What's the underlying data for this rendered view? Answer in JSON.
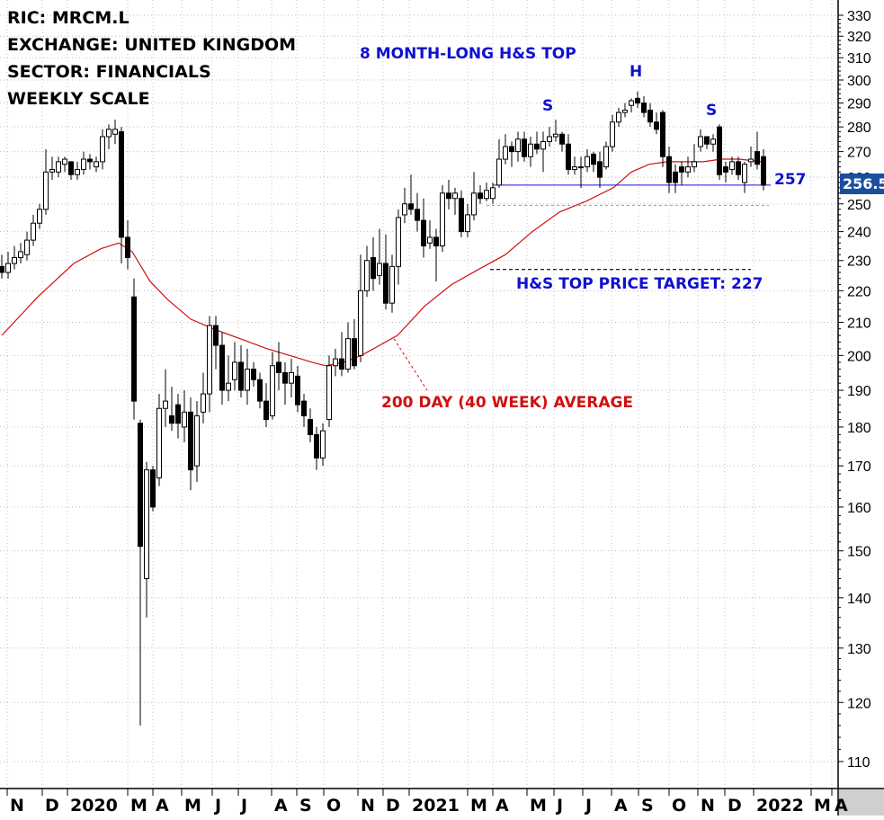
{
  "info": {
    "ric": "RIC: MRCM.L",
    "exchange": "EXCHANGE: UNITED KINGDOM",
    "sector": "SECTOR: FINANCIALS",
    "scale": "WEEKLY SCALE"
  },
  "annotations": {
    "pattern": "8 MONTH-LONG H&S TOP",
    "left_shoulder": "S",
    "head": "H",
    "right_shoulder": "S",
    "neckline": "257",
    "target": "H&S TOP PRICE TARGET: 227",
    "average": "200 DAY (40 WEEK) AVERAGE",
    "last_price": "256.5"
  },
  "colors": {
    "annotation_blue": "#1010d0",
    "average_red": "#d01010",
    "last_price_box": "#1a4fa0",
    "candle_up": "#ffffff",
    "candle_down": "#000000"
  },
  "chart_data": {
    "type": "candlestick",
    "scale": "log",
    "ylim": [
      105,
      335
    ],
    "y_ticks": [
      110,
      120,
      130,
      140,
      150,
      160,
      170,
      180,
      190,
      200,
      210,
      220,
      230,
      240,
      250,
      260,
      270,
      280,
      290,
      300,
      310,
      320,
      330
    ],
    "x_labels": [
      "N",
      "D",
      "2020",
      "M",
      "A",
      "M",
      "J",
      "J",
      "A",
      "S",
      "O",
      "N",
      "D",
      "2021",
      "M",
      "A",
      "M",
      "J",
      "J",
      "A",
      "S",
      "O",
      "N",
      "D",
      "2022",
      "M",
      "A"
    ],
    "neckline": 257,
    "price_target": 227,
    "last_price": 256.5,
    "moving_average": {
      "name": "200 DAY (40 WEEK) AVERAGE",
      "values": [
        [
          0,
          206
        ],
        [
          40,
          218
        ],
        [
          80,
          229
        ],
        [
          110,
          234
        ],
        [
          130,
          236
        ],
        [
          145,
          233
        ],
        [
          165,
          223
        ],
        [
          185,
          217
        ],
        [
          210,
          211
        ],
        [
          235,
          208
        ],
        [
          265,
          205
        ],
        [
          295,
          202
        ],
        [
          320,
          200
        ],
        [
          345,
          198
        ],
        [
          360,
          197
        ],
        [
          380,
          198
        ],
        [
          400,
          200
        ],
        [
          420,
          203
        ],
        [
          440,
          206
        ],
        [
          470,
          215
        ],
        [
          500,
          222
        ],
        [
          530,
          227
        ],
        [
          560,
          232
        ],
        [
          590,
          240
        ],
        [
          620,
          247
        ],
        [
          650,
          251
        ],
        [
          680,
          256
        ],
        [
          700,
          262
        ],
        [
          720,
          265
        ],
        [
          740,
          266
        ],
        [
          760,
          266
        ],
        [
          780,
          266
        ],
        [
          800,
          267
        ],
        [
          820,
          267
        ],
        [
          845,
          266
        ]
      ]
    },
    "candles": [
      [
        0,
        228,
        226,
        232,
        224
      ],
      [
        7,
        226,
        229,
        233,
        224
      ],
      [
        14,
        229,
        231,
        235,
        227
      ],
      [
        21,
        231,
        233,
        236,
        229
      ],
      [
        28,
        232,
        237,
        240,
        230
      ],
      [
        35,
        237,
        243,
        246,
        235
      ],
      [
        42,
        243,
        248,
        250,
        241
      ],
      [
        49,
        248,
        262,
        271,
        246
      ],
      [
        56,
        262,
        263,
        268,
        259
      ],
      [
        63,
        262,
        266,
        268,
        260
      ],
      [
        70,
        265,
        267,
        268,
        262
      ],
      [
        77,
        266,
        261,
        264,
        259
      ],
      [
        84,
        261,
        263,
        266,
        259
      ],
      [
        91,
        263,
        267,
        270,
        261
      ],
      [
        98,
        267,
        266,
        269,
        263
      ],
      [
        105,
        264,
        266,
        268,
        262
      ],
      [
        112,
        266,
        276,
        279,
        263
      ],
      [
        119,
        276,
        279,
        281,
        271
      ],
      [
        126,
        277,
        279,
        283,
        273
      ],
      [
        133,
        278,
        238,
        280,
        229
      ],
      [
        140,
        238,
        231,
        244,
        227
      ],
      [
        147,
        218,
        187,
        224,
        182
      ],
      [
        154,
        181,
        151,
        182,
        116
      ],
      [
        161,
        144,
        169,
        171,
        136
      ],
      [
        168,
        169,
        160,
        170,
        159
      ],
      [
        175,
        167,
        185,
        189,
        165
      ],
      [
        182,
        185,
        187,
        196,
        180
      ],
      [
        189,
        183,
        181,
        191,
        179
      ],
      [
        196,
        186,
        181,
        189,
        177
      ],
      [
        203,
        180,
        184,
        190,
        176
      ],
      [
        210,
        184,
        169,
        188,
        164
      ],
      [
        217,
        170,
        183,
        187,
        166
      ],
      [
        224,
        184,
        189,
        195,
        181
      ],
      [
        231,
        189,
        209,
        212,
        184
      ],
      [
        238,
        209,
        203,
        212,
        196
      ],
      [
        245,
        203,
        190,
        207,
        186
      ],
      [
        252,
        190,
        192,
        200,
        187
      ],
      [
        259,
        193,
        198,
        204,
        190
      ],
      [
        266,
        198,
        190,
        203,
        188
      ],
      [
        273,
        190,
        196,
        202,
        186
      ],
      [
        280,
        196,
        193,
        198,
        191
      ],
      [
        287,
        193,
        187,
        195,
        185
      ],
      [
        294,
        187,
        182,
        192,
        180
      ],
      [
        301,
        183,
        197,
        201,
        182
      ],
      [
        308,
        198,
        195,
        204,
        190
      ],
      [
        315,
        195,
        192,
        198,
        186
      ],
      [
        322,
        192,
        195,
        199,
        188
      ],
      [
        329,
        194,
        186,
        197,
        184
      ],
      [
        336,
        187,
        183,
        189,
        180
      ],
      [
        343,
        182,
        178,
        185,
        176
      ],
      [
        350,
        178,
        172,
        180,
        169
      ],
      [
        357,
        172,
        179,
        181,
        170
      ],
      [
        364,
        182,
        197,
        200,
        180
      ],
      [
        371,
        197,
        199,
        202,
        194
      ],
      [
        378,
        199,
        196,
        207,
        194
      ],
      [
        385,
        196,
        205,
        210,
        195
      ],
      [
        392,
        205,
        197,
        211,
        196
      ],
      [
        399,
        200,
        220,
        232,
        198
      ],
      [
        406,
        220,
        230,
        235,
        218
      ],
      [
        413,
        231,
        224,
        238,
        220
      ],
      [
        420,
        225,
        229,
        241,
        222
      ],
      [
        427,
        229,
        216,
        239,
        214
      ],
      [
        434,
        216,
        228,
        232,
        213
      ],
      [
        441,
        228,
        245,
        248,
        222
      ],
      [
        448,
        246,
        250,
        256,
        243
      ],
      [
        455,
        250,
        248,
        261,
        246
      ],
      [
        462,
        248,
        244,
        254,
        240
      ],
      [
        469,
        244,
        235,
        252,
        231
      ],
      [
        476,
        236,
        238,
        244,
        234
      ],
      [
        483,
        238,
        235,
        241,
        223
      ],
      [
        490,
        235,
        254,
        257,
        233
      ],
      [
        497,
        254,
        252,
        259,
        248
      ],
      [
        504,
        252,
        254,
        256,
        246
      ],
      [
        511,
        252,
        240,
        255,
        238
      ],
      [
        518,
        240,
        246,
        250,
        238
      ],
      [
        525,
        246,
        254,
        262,
        244
      ],
      [
        532,
        254,
        252,
        257,
        250
      ],
      [
        539,
        252,
        255,
        258,
        251
      ],
      [
        546,
        252,
        256,
        258,
        250
      ],
      [
        553,
        257,
        267,
        275,
        256
      ],
      [
        560,
        267,
        272,
        277,
        265
      ],
      [
        567,
        272,
        270,
        274,
        264
      ],
      [
        574,
        270,
        275,
        278,
        266
      ],
      [
        581,
        275,
        268,
        278,
        266
      ],
      [
        588,
        268,
        273,
        276,
        264
      ],
      [
        595,
        273,
        271,
        278,
        269
      ],
      [
        602,
        271,
        274,
        278,
        262
      ],
      [
        609,
        274,
        276,
        280,
        272
      ],
      [
        616,
        276,
        277,
        283,
        274
      ],
      [
        623,
        277,
        273,
        278,
        270
      ],
      [
        630,
        273,
        263,
        277,
        261
      ],
      [
        637,
        263,
        264,
        268,
        261
      ],
      [
        644,
        264,
        264,
        268,
        256
      ],
      [
        651,
        264,
        268,
        271,
        262
      ],
      [
        658,
        269,
        265,
        270,
        262
      ],
      [
        665,
        266,
        260,
        270,
        256
      ],
      [
        672,
        264,
        272,
        274,
        263
      ],
      [
        679,
        272,
        282,
        285,
        270
      ],
      [
        686,
        282,
        286,
        288,
        280
      ],
      [
        693,
        286,
        287,
        290,
        284
      ],
      [
        700,
        289,
        291,
        292,
        286
      ],
      [
        707,
        292,
        290,
        295,
        288
      ],
      [
        714,
        290,
        286,
        293,
        284
      ],
      [
        721,
        287,
        282,
        290,
        280
      ],
      [
        728,
        282,
        279,
        286,
        277
      ],
      [
        735,
        286,
        268,
        287,
        264
      ],
      [
        742,
        268,
        258,
        272,
        254
      ],
      [
        749,
        262,
        258,
        265,
        254
      ],
      [
        756,
        264,
        262,
        266,
        257
      ],
      [
        763,
        262,
        264,
        268,
        260
      ],
      [
        770,
        264,
        266,
        273,
        262
      ],
      [
        777,
        272,
        276,
        279,
        270
      ],
      [
        784,
        276,
        273,
        276,
        271
      ],
      [
        791,
        273,
        275,
        277,
        270
      ],
      [
        798,
        280,
        261,
        281,
        259
      ],
      [
        805,
        264,
        262,
        266,
        258
      ],
      [
        812,
        263,
        266,
        268,
        261
      ],
      [
        819,
        266,
        261,
        268,
        259
      ],
      [
        826,
        258,
        265,
        266,
        254
      ],
      [
        833,
        266,
        267,
        272,
        264
      ],
      [
        840,
        270,
        265,
        278,
        263
      ],
      [
        847,
        268,
        257,
        271,
        255
      ]
    ]
  }
}
